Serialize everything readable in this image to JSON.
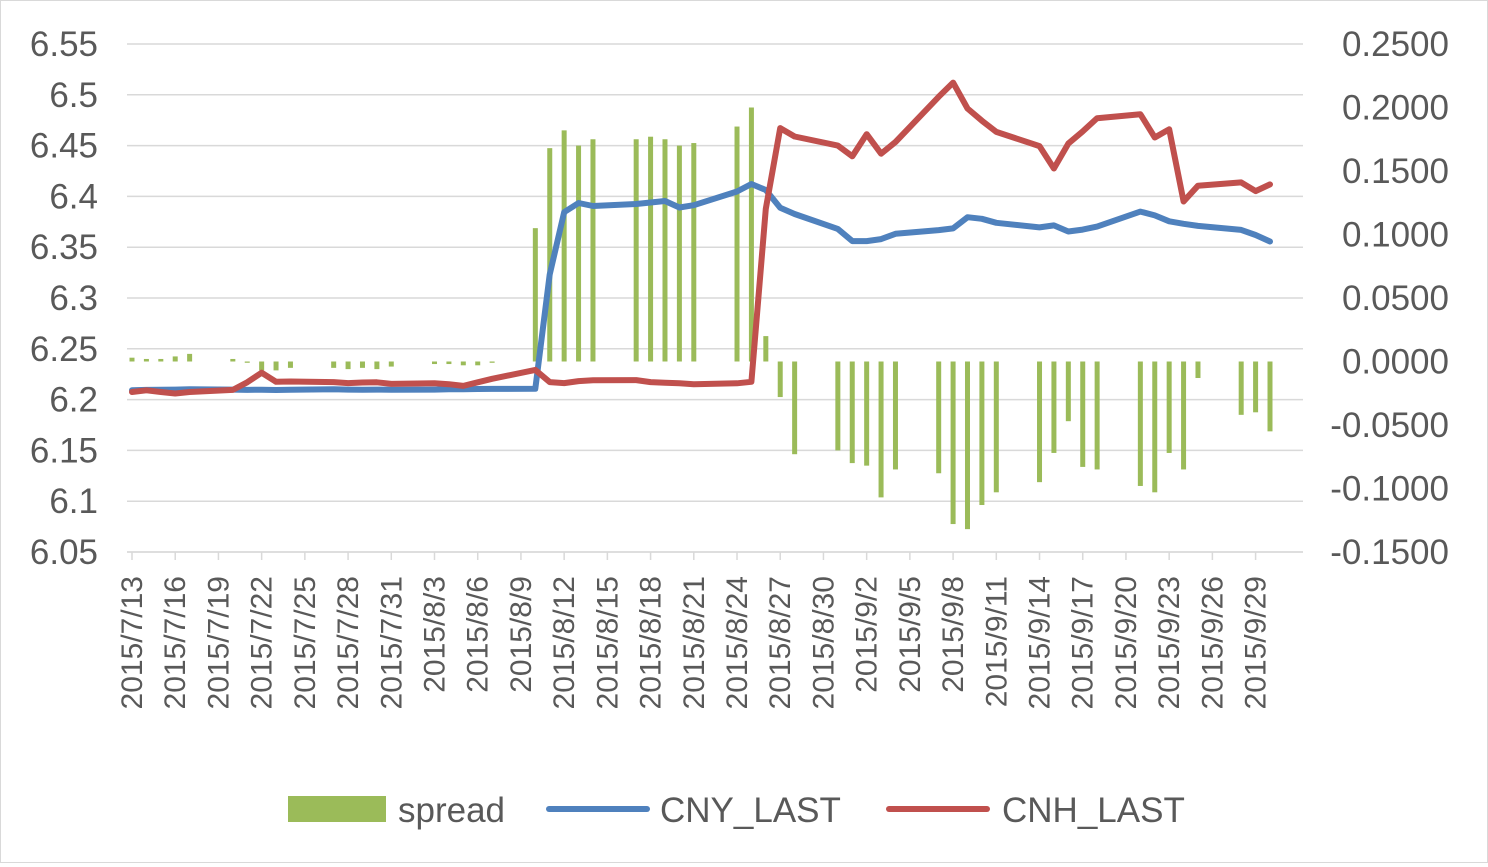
{
  "chart_data": {
    "type": "combo-bar-line",
    "title": "",
    "dates": [
      "2015/7/13",
      "2015/7/14",
      "2015/7/15",
      "2015/7/16",
      "2015/7/17",
      "2015/7/20",
      "2015/7/21",
      "2015/7/22",
      "2015/7/23",
      "2015/7/24",
      "2015/7/27",
      "2015/7/28",
      "2015/7/29",
      "2015/7/30",
      "2015/7/31",
      "2015/8/3",
      "2015/8/4",
      "2015/8/5",
      "2015/8/6",
      "2015/8/7",
      "2015/8/10",
      "2015/8/11",
      "2015/8/12",
      "2015/8/13",
      "2015/8/14",
      "2015/8/17",
      "2015/8/18",
      "2015/8/19",
      "2015/8/20",
      "2015/8/21",
      "2015/8/24",
      "2015/8/25",
      "2015/8/26",
      "2015/8/27",
      "2015/8/28",
      "2015/8/31",
      "2015/9/1",
      "2015/9/2",
      "2015/9/3",
      "2015/9/4",
      "2015/9/7",
      "2015/9/8",
      "2015/9/9",
      "2015/9/10",
      "2015/9/11",
      "2015/9/14",
      "2015/9/15",
      "2015/9/16",
      "2015/9/17",
      "2015/9/18",
      "2015/9/21",
      "2015/9/22",
      "2015/9/23",
      "2015/9/24",
      "2015/9/25",
      "2015/9/28",
      "2015/9/29",
      "2015/9/30"
    ],
    "x_tick_labels": [
      "2015/7/13",
      "2015/7/16",
      "2015/7/19",
      "2015/7/22",
      "2015/7/25",
      "2015/7/28",
      "2015/7/31",
      "2015/8/3",
      "2015/8/6",
      "2015/8/9",
      "2015/8/12",
      "2015/8/15",
      "2015/8/18",
      "2015/8/21",
      "2015/8/24",
      "2015/8/27",
      "2015/8/30",
      "2015/9/2",
      "2015/9/5",
      "2015/9/8",
      "2015/9/11",
      "2015/9/14",
      "2015/9/17",
      "2015/9/20",
      "2015/9/23",
      "2015/9/26",
      "2015/9/29"
    ],
    "x_range": [
      "2015/7/13",
      "2015/9/30"
    ],
    "y_left": {
      "ylim": [
        6.05,
        6.55
      ],
      "ticks": [
        "6.05",
        "6.1",
        "6.15",
        "6.2",
        "6.25",
        "6.3",
        "6.35",
        "6.4",
        "6.45",
        "6.5",
        "6.55"
      ],
      "ylabel": ""
    },
    "y_right": {
      "ylim": [
        -0.15,
        0.25
      ],
      "ticks": [
        "-0.1500",
        "-0.1000",
        "-0.0500",
        "0.0000",
        "0.0500",
        "0.1000",
        "0.1500",
        "0.2000",
        "0.2500"
      ],
      "ylabel": ""
    },
    "grid": true,
    "legend_position": "bottom",
    "series": [
      {
        "name": "spread",
        "type": "bar",
        "axis": "right",
        "color": "#9BBB59",
        "values": [
          0.003,
          0.002,
          0.002,
          0.004,
          0.006,
          0.002,
          -0.001,
          -0.007,
          -0.007,
          -0.005,
          -0.005,
          -0.006,
          -0.005,
          -0.006,
          -0.004,
          -0.002,
          -0.002,
          -0.003,
          -0.003,
          -0.001,
          0.105,
          0.168,
          0.182,
          0.17,
          0.175,
          0.175,
          0.177,
          0.175,
          0.17,
          0.172,
          0.185,
          0.2,
          0.02,
          -0.028,
          -0.073,
          -0.07,
          -0.08,
          -0.082,
          -0.107,
          -0.085,
          -0.088,
          -0.128,
          -0.132,
          -0.113,
          -0.103,
          -0.095,
          -0.072,
          -0.047,
          -0.083,
          -0.085,
          -0.098,
          -0.103,
          -0.072,
          -0.085,
          -0.013,
          -0.042,
          -0.04,
          -0.055
        ]
      },
      {
        "name": "CNY_LAST",
        "type": "line",
        "axis": "left",
        "color": "#4F81BD",
        "values": [
          6.2093,
          6.2095,
          6.2096,
          6.2098,
          6.2101,
          6.2098,
          6.2095,
          6.2097,
          6.2094,
          6.2096,
          6.2102,
          6.2098,
          6.2096,
          6.2098,
          6.2097,
          6.2098,
          6.2101,
          6.2102,
          6.2104,
          6.2105,
          6.2106,
          6.3231,
          6.3845,
          6.3935,
          6.3906,
          6.3925,
          6.394,
          6.3955,
          6.3891,
          6.3913,
          6.4048,
          6.4122,
          6.4063,
          6.3888,
          6.3827,
          6.368,
          6.356,
          6.356,
          6.358,
          6.3632,
          6.3668,
          6.3685,
          6.3795,
          6.378,
          6.374,
          6.3695,
          6.3715,
          6.3655,
          6.3673,
          6.3703,
          6.385,
          6.3813,
          6.3755,
          6.373,
          6.371,
          6.367,
          6.362,
          6.3556
        ]
      },
      {
        "name": "CNH_LAST",
        "type": "line",
        "axis": "left",
        "color": "#C0504D",
        "values": [
          6.2075,
          6.2092,
          6.2075,
          6.206,
          6.2075,
          6.2095,
          6.217,
          6.2265,
          6.2175,
          6.2178,
          6.2172,
          6.2162,
          6.2168,
          6.217,
          6.2155,
          6.216,
          6.2152,
          6.2135,
          6.217,
          6.2205,
          6.2292,
          6.2172,
          6.2162,
          6.2182,
          6.219,
          6.2192,
          6.2172,
          6.2165,
          6.216,
          6.2152,
          6.216,
          6.2175,
          6.3878,
          6.4672,
          6.459,
          6.45,
          6.4395,
          6.4612,
          6.442,
          6.4535,
          6.498,
          6.512,
          6.4865,
          6.4745,
          6.4635,
          6.4495,
          6.4275,
          6.452,
          6.464,
          6.477,
          6.4808,
          6.458,
          6.466,
          6.395,
          6.4105,
          6.4138,
          6.4052,
          6.4118
        ]
      }
    ]
  },
  "legend": [
    {
      "label": "spread",
      "color": "#9BBB59",
      "symbol": "bar"
    },
    {
      "label": "CNY_LAST",
      "color": "#4F81BD",
      "symbol": "line"
    },
    {
      "label": "CNH_LAST",
      "color": "#C0504D",
      "symbol": "line"
    }
  ]
}
